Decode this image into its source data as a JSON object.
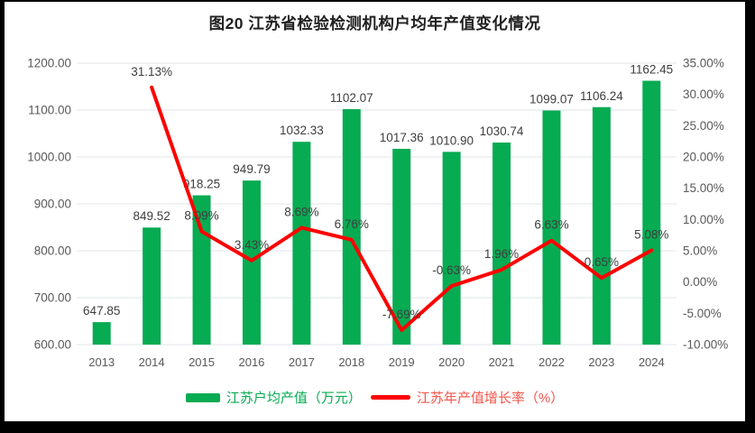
{
  "chart_data": {
    "type": "combo",
    "title": "图20  江苏省检验检测机构户均年产值变化情况",
    "categories": [
      "2013",
      "2014",
      "2015",
      "2016",
      "2017",
      "2018",
      "2019",
      "2020",
      "2021",
      "2022",
      "2023",
      "2024"
    ],
    "series": [
      {
        "name": "江苏户均产值（万元）",
        "type": "bar",
        "axis": "left",
        "color": "#07AB52",
        "values": [
          647.85,
          849.52,
          918.25,
          949.79,
          1032.33,
          1102.07,
          1017.36,
          1010.9,
          1030.74,
          1099.07,
          1106.24,
          1162.45
        ],
        "labels": [
          "647.85",
          "849.52",
          "918.25",
          "949.79",
          "1032.33",
          "1102.07",
          "1017.36",
          "1010.90",
          "1030.74",
          "1099.07",
          "1106.24",
          "1162.45"
        ]
      },
      {
        "name": "江苏年产值增长率（%）",
        "type": "line",
        "axis": "right",
        "color": "#FE0000",
        "values": [
          null,
          31.13,
          8.09,
          3.43,
          8.69,
          6.76,
          -7.69,
          -0.63,
          1.96,
          6.63,
          0.65,
          5.08
        ],
        "labels": [
          null,
          "31.13%",
          "8.09%",
          "3.43%",
          "8.69%",
          "6.76%",
          "-7.69%",
          "-0.63%",
          "1.96%",
          "6.63%",
          "0.65%",
          "5.08%"
        ]
      }
    ],
    "left_axis": {
      "min": 600,
      "max": 1200,
      "step": 100,
      "tick_labels": [
        "600.00",
        "700.00",
        "800.00",
        "900.00",
        "1000.00",
        "1100.00",
        "1200.00"
      ]
    },
    "right_axis": {
      "min": -10,
      "max": 35,
      "step": 5,
      "tick_labels": [
        "-10.00%",
        "-5.00%",
        "0.00%",
        "5.00%",
        "10.00%",
        "15.00%",
        "20.00%",
        "25.00%",
        "30.00%",
        "35.00%"
      ]
    },
    "grid": true,
    "legend_position": "bottom"
  },
  "colors": {
    "axis_text": "#595959",
    "data_label_text": "#3E3E3E",
    "gridline": "#E2E6EA",
    "background": "#FFFFFF",
    "frame": "#000000"
  }
}
